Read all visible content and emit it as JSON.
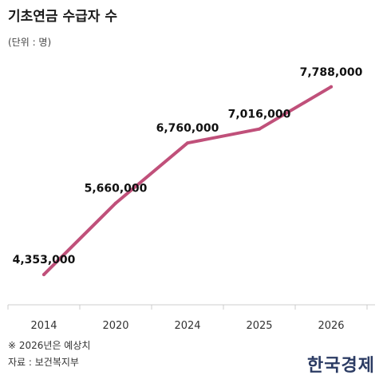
{
  "header": {
    "title": "기초연금 수급자 수",
    "unit": "(단위 : 명)"
  },
  "chart_data": {
    "type": "line",
    "title": "기초연금 수급자 수",
    "xlabel": "",
    "ylabel": "",
    "categories": [
      "2014",
      "2020",
      "2024",
      "2025",
      "2026"
    ],
    "series": [
      {
        "values": [
          4353000,
          5660000,
          6760000,
          7016000,
          7788000
        ],
        "labels": [
          "4,353,000",
          "5,660,000",
          "6,760,000",
          "7,016,000",
          "7,788,000"
        ]
      }
    ],
    "ylim": [
      3800000,
      8500000
    ],
    "grid": false,
    "colors": {
      "line": "#c0507a",
      "axis": "#cccccc"
    }
  },
  "footer": {
    "note": "※ 2026년은 예상치",
    "source": "자료 : 보건복지부",
    "logo": "한국경제"
  }
}
